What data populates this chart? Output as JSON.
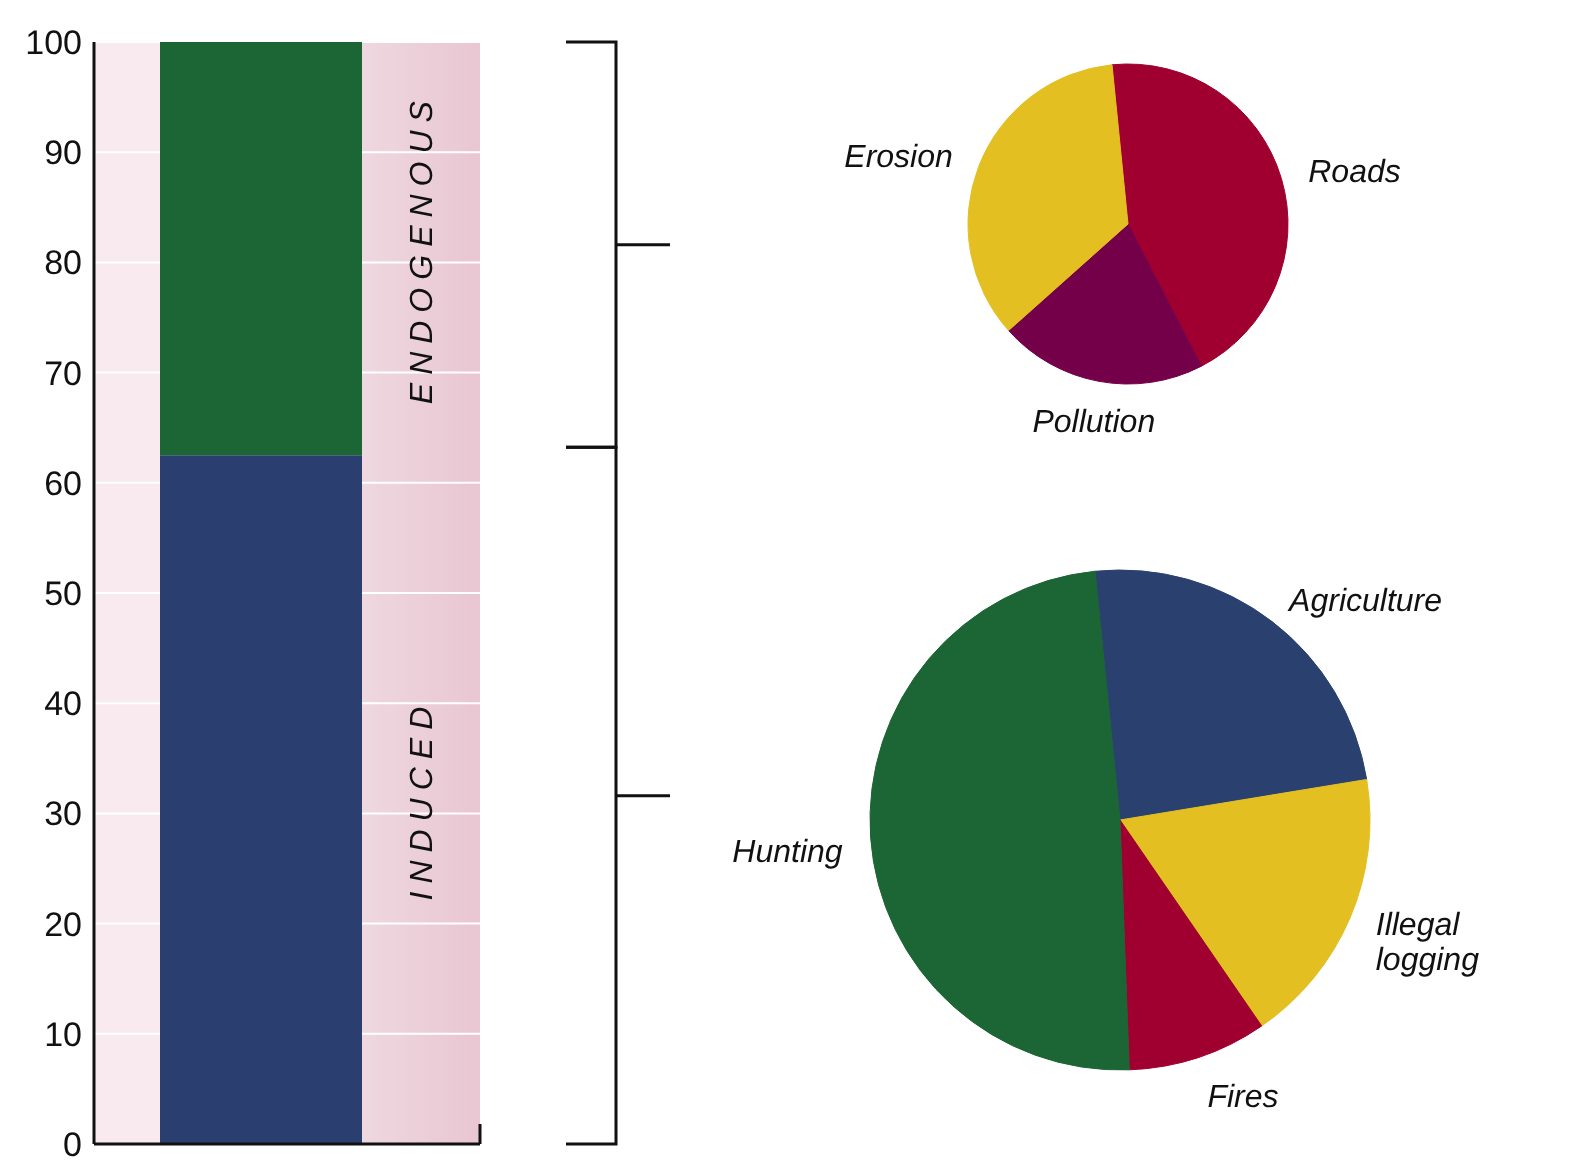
{
  "chart_data": [
    {
      "type": "bar",
      "stacked": true,
      "categories": [
        null
      ],
      "series": [
        {
          "name": "INDUCED",
          "color": "#2a3f6f",
          "values": [
            62.5
          ]
        },
        {
          "name": "ENDOGENOUS",
          "color": "#1c6535",
          "values": [
            37.5
          ]
        }
      ],
      "ylim": [
        0,
        100
      ],
      "yticks": [
        0,
        10,
        20,
        30,
        40,
        50,
        60,
        70,
        80,
        90,
        100
      ],
      "grid": "y"
    },
    {
      "type": "pie",
      "categories": [
        "Roads",
        "Pollution",
        "Erosion"
      ],
      "values": [
        44,
        21,
        35
      ],
      "colors": [
        "#a0002f",
        "#75004a",
        "#e3bf22"
      ]
    },
    {
      "type": "pie",
      "categories": [
        "Agriculture",
        "Illegal logging",
        "Fires",
        "Hunting"
      ],
      "values": [
        24,
        18,
        9,
        49
      ],
      "colors": [
        "#2a4170",
        "#e3bf22",
        "#a0002f",
        "#1c6535"
      ]
    }
  ]
}
